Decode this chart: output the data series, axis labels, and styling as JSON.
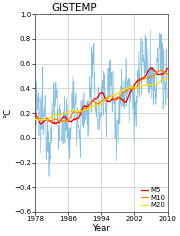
{
  "title": "GISTEMP",
  "xlabel": "Year",
  "ylabel": "°C",
  "xlim": [
    1978,
    2010
  ],
  "ylim": [
    -0.6,
    1.0
  ],
  "xticks": [
    1978,
    1986,
    1994,
    2002,
    2010
  ],
  "yticks": [
    -0.6,
    -0.4,
    -0.2,
    0,
    0.2,
    0.4,
    0.6,
    0.8,
    1.0
  ],
  "raw_color": "#7ab8d9",
  "m5_color": "#ff0000",
  "m10_color": "#ff8800",
  "m20_color": "#ffdd00",
  "legend_labels": [
    "M5",
    "M10",
    "M20"
  ],
  "background_color": "#ffffff",
  "grid_color": "#bbbbbb",
  "seed": 12345,
  "n_months": 384,
  "start_year": 1978,
  "end_year": 2010
}
